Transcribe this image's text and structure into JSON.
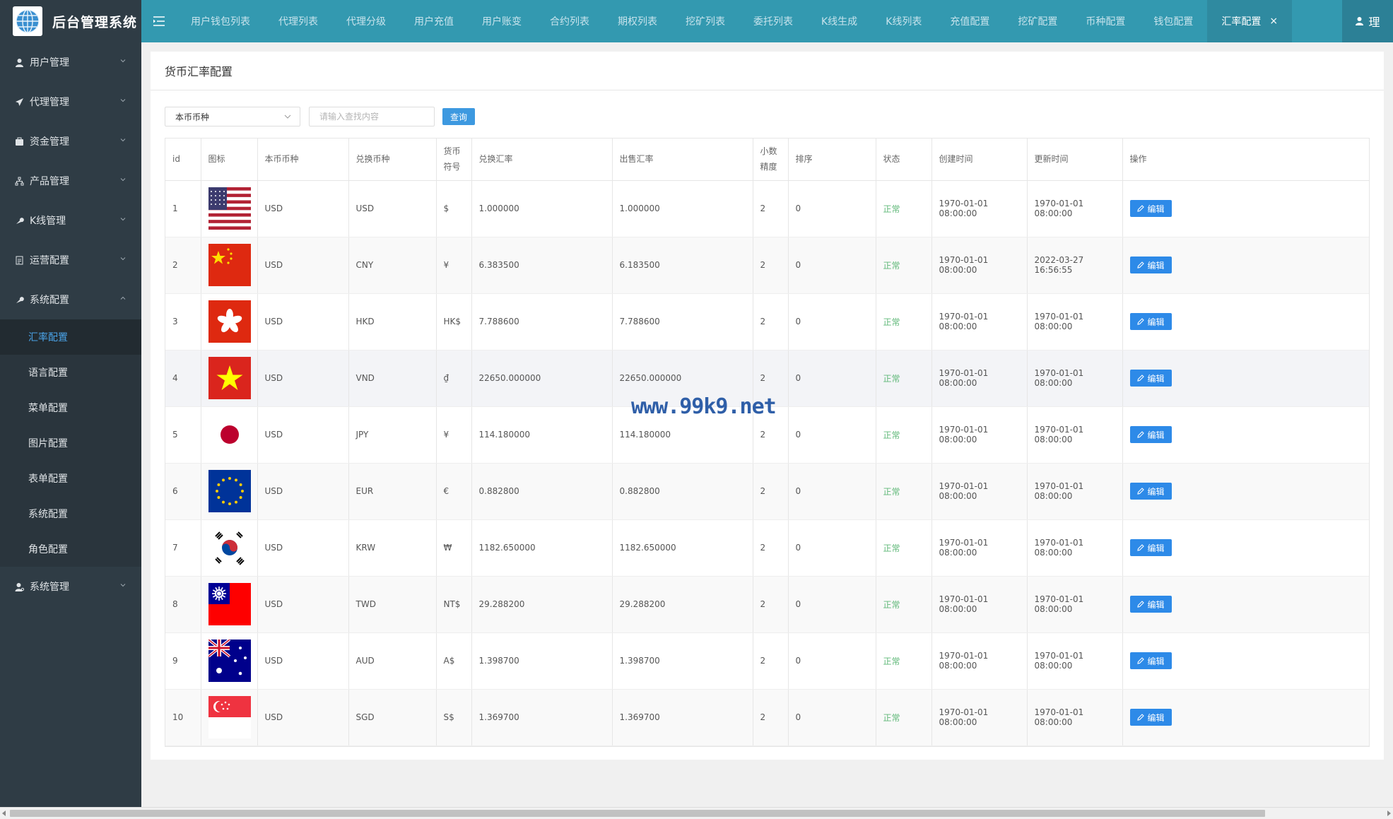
{
  "brand": {
    "title": "后台管理系统"
  },
  "sidebar": {
    "items": [
      {
        "label": "用户管理",
        "icon": "user-icon",
        "expanded": false
      },
      {
        "label": "代理管理",
        "icon": "send-icon",
        "expanded": false
      },
      {
        "label": "资金管理",
        "icon": "wallet-icon",
        "expanded": false
      },
      {
        "label": "产品管理",
        "icon": "sitemap-icon",
        "expanded": false
      },
      {
        "label": "K线管理",
        "icon": "wrench-icon",
        "expanded": false
      },
      {
        "label": "运营配置",
        "icon": "document-icon",
        "expanded": false
      },
      {
        "label": "系统配置",
        "icon": "wrench-icon",
        "expanded": true
      },
      {
        "label": "系统管理",
        "icon": "user-settings-icon",
        "expanded": false
      }
    ],
    "sub_items": [
      {
        "label": "汇率配置",
        "active": true
      },
      {
        "label": "语言配置"
      },
      {
        "label": "菜单配置"
      },
      {
        "label": "图片配置"
      },
      {
        "label": "表单配置"
      },
      {
        "label": "系统配置"
      },
      {
        "label": "角色配置"
      }
    ]
  },
  "topbar": {
    "tabs": [
      "用户钱包列表",
      "代理列表",
      "代理分级",
      "用户充值",
      "用户账变",
      "合约列表",
      "期权列表",
      "挖矿列表",
      "委托列表",
      "K线生成",
      "K线列表",
      "充值配置",
      "挖矿配置",
      "币种配置",
      "钱包配置",
      "汇率配置"
    ],
    "active_tab": "汇率配置",
    "close_glyph": "×",
    "user_label": "理"
  },
  "panel": {
    "title": "货币汇率配置",
    "select_value": "本币币种",
    "search_placeholder": "请输入查找内容",
    "query_label": "查询"
  },
  "table": {
    "headers": {
      "id": "id",
      "icon": "图标",
      "base": "本币币种",
      "target": "兑换币种",
      "symbol_1": "货币",
      "symbol_2": "符号",
      "rate": "兑换汇率",
      "sell_rate": "出售汇率",
      "precision_1": "小数",
      "precision_2": "精度",
      "sort": "排序",
      "status": "状态",
      "created": "创建时间",
      "updated": "更新时间",
      "actions": "操作"
    },
    "edit_label": "编辑",
    "rows": [
      {
        "id": "1",
        "flag": "us-flag-icon",
        "base": "USD",
        "target": "USD",
        "symbol": "$",
        "rate": "1.000000",
        "sell_rate": "1.000000",
        "precision": "2",
        "sort": "0",
        "status": "正常",
        "created": "1970-01-01 08:00:00",
        "updated": "1970-01-01 08:00:00"
      },
      {
        "id": "2",
        "flag": "cn-flag-icon",
        "base": "USD",
        "target": "CNY",
        "symbol": "¥",
        "rate": "6.383500",
        "sell_rate": "6.183500",
        "precision": "2",
        "sort": "0",
        "status": "正常",
        "created": "1970-01-01 08:00:00",
        "updated": "2022-03-27 16:56:55"
      },
      {
        "id": "3",
        "flag": "hk-flag-icon",
        "base": "USD",
        "target": "HKD",
        "symbol": "HK$",
        "rate": "7.788600",
        "sell_rate": "7.788600",
        "precision": "2",
        "sort": "0",
        "status": "正常",
        "created": "1970-01-01 08:00:00",
        "updated": "1970-01-01 08:00:00"
      },
      {
        "id": "4",
        "flag": "vn-flag-icon",
        "base": "USD",
        "target": "VND",
        "symbol": "₫",
        "rate": "22650.000000",
        "sell_rate": "22650.000000",
        "precision": "2",
        "sort": "0",
        "status": "正常",
        "created": "1970-01-01 08:00:00",
        "updated": "1970-01-01 08:00:00"
      },
      {
        "id": "5",
        "flag": "jp-flag-icon",
        "base": "USD",
        "target": "JPY",
        "symbol": "¥",
        "rate": "114.180000",
        "sell_rate": "114.180000",
        "precision": "2",
        "sort": "0",
        "status": "正常",
        "created": "1970-01-01 08:00:00",
        "updated": "1970-01-01 08:00:00"
      },
      {
        "id": "6",
        "flag": "eu-flag-icon",
        "base": "USD",
        "target": "EUR",
        "symbol": "€",
        "rate": "0.882800",
        "sell_rate": "0.882800",
        "precision": "2",
        "sort": "0",
        "status": "正常",
        "created": "1970-01-01 08:00:00",
        "updated": "1970-01-01 08:00:00"
      },
      {
        "id": "7",
        "flag": "kr-flag-icon",
        "base": "USD",
        "target": "KRW",
        "symbol": "₩",
        "rate": "1182.650000",
        "sell_rate": "1182.650000",
        "precision": "2",
        "sort": "0",
        "status": "正常",
        "created": "1970-01-01 08:00:00",
        "updated": "1970-01-01 08:00:00"
      },
      {
        "id": "8",
        "flag": "tw-flag-icon",
        "base": "USD",
        "target": "TWD",
        "symbol": "NT$",
        "rate": "29.288200",
        "sell_rate": "29.288200",
        "precision": "2",
        "sort": "0",
        "status": "正常",
        "created": "1970-01-01 08:00:00",
        "updated": "1970-01-01 08:00:00"
      },
      {
        "id": "9",
        "flag": "au-flag-icon",
        "base": "USD",
        "target": "AUD",
        "symbol": "A$",
        "rate": "1.398700",
        "sell_rate": "1.398700",
        "precision": "2",
        "sort": "0",
        "status": "正常",
        "created": "1970-01-01 08:00:00",
        "updated": "1970-01-01 08:00:00"
      },
      {
        "id": "10",
        "flag": "sg-flag-icon",
        "base": "USD",
        "target": "SGD",
        "symbol": "S$",
        "rate": "1.369700",
        "sell_rate": "1.369700",
        "precision": "2",
        "sort": "0",
        "status": "正常",
        "created": "1970-01-01 08:00:00",
        "updated": "1970-01-01 08:00:00"
      }
    ]
  },
  "watermark": "www.99k9.net",
  "colors": {
    "sidebar": "#2f3c45",
    "topbar": "#3399b0",
    "accent": "#2d8ae8",
    "status_ok": "#5fb878"
  }
}
